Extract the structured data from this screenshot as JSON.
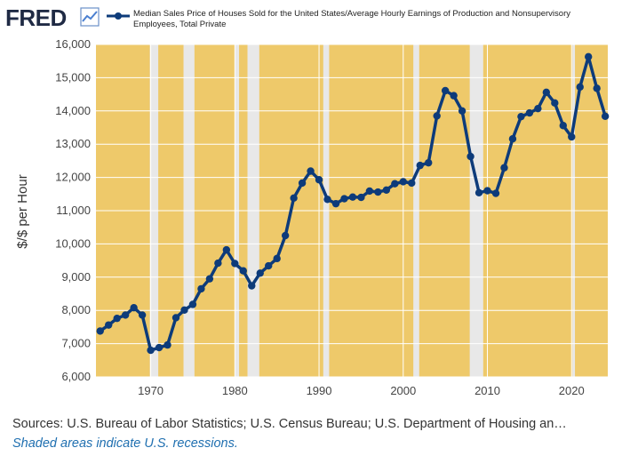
{
  "header": {
    "logo": "FRED",
    "legend_label_line1": "Median Sales Price of Houses Sold for the United States/Average Hourly Earnings of Production and Nonsupervisory",
    "legend_label_line2": "Employees, Total Private"
  },
  "footer": {
    "source": "Sources: U.S. Bureau of Labor Statistics; U.S. Census Bureau; U.S. Department of Housing an…",
    "note": "Shaded areas indicate U.S. recessions."
  },
  "colors": {
    "plot_background": "#eec96a",
    "recession": "#e8e8e8",
    "line": "#0d3b7a",
    "grid": "#ffffff"
  },
  "chart_data": {
    "type": "line",
    "title": "",
    "xlabel": "",
    "ylabel": "$/$ per Hour",
    "xlim": [
      1963.5,
      2024.3
    ],
    "ylim": [
      6000,
      16000
    ],
    "x_ticks": [
      1970,
      1980,
      1990,
      2000,
      2010,
      2020
    ],
    "x_tick_labels": [
      "1970",
      "1980",
      "1990",
      "2000",
      "2010",
      "2020"
    ],
    "y_ticks": [
      6000,
      7000,
      8000,
      9000,
      10000,
      11000,
      12000,
      13000,
      14000,
      15000,
      16000
    ],
    "y_tick_labels": [
      "6,000",
      "7,000",
      "8,000",
      "9,000",
      "10,000",
      "11,000",
      "12,000",
      "13,000",
      "14,000",
      "15,000",
      "16,000"
    ],
    "grid": true,
    "legend_position": "top",
    "recessions": [
      [
        1969.9,
        1970.9
      ],
      [
        1973.9,
        1975.2
      ],
      [
        1980.0,
        1980.5
      ],
      [
        1981.5,
        1982.9
      ],
      [
        1990.5,
        1991.2
      ],
      [
        2001.2,
        2001.9
      ],
      [
        2007.9,
        2009.5
      ],
      [
        2020.1,
        2020.4
      ]
    ],
    "series": [
      {
        "name": "Median Sales Price of Houses Sold for the United States/Average Hourly Earnings of Production and Nonsupervisory Employees, Total Private",
        "x": [
          1964,
          1965,
          1966,
          1967,
          1968,
          1969,
          1970,
          1971,
          1972,
          1973,
          1974,
          1975,
          1976,
          1977,
          1978,
          1979,
          1980,
          1981,
          1982,
          1983,
          1984,
          1985,
          1986,
          1987,
          1988,
          1989,
          1990,
          1991,
          1992,
          1993,
          1994,
          1995,
          1996,
          1997,
          1998,
          1999,
          2000,
          2001,
          2002,
          2003,
          2004,
          2005,
          2006,
          2007,
          2008,
          2009,
          2010,
          2011,
          2012,
          2013,
          2014,
          2015,
          2016,
          2017,
          2018,
          2019,
          2020,
          2021,
          2022,
          2023,
          2024
        ],
        "values": [
          7380,
          7560,
          7760,
          7860,
          8080,
          7860,
          6800,
          6880,
          6960,
          7780,
          8010,
          8180,
          8650,
          8950,
          9420,
          9820,
          9410,
          9190,
          8740,
          9120,
          9340,
          9560,
          10250,
          11380,
          11830,
          12190,
          11930,
          11340,
          11210,
          11360,
          11410,
          11400,
          11590,
          11560,
          11620,
          11810,
          11870,
          11830,
          12360,
          12440,
          13850,
          14610,
          14460,
          14000,
          12630,
          11540,
          11600,
          11520,
          12290,
          13160,
          13830,
          13940,
          14070,
          14560,
          14240,
          13560,
          13220,
          14720,
          15630,
          14680,
          13840
        ]
      }
    ]
  }
}
